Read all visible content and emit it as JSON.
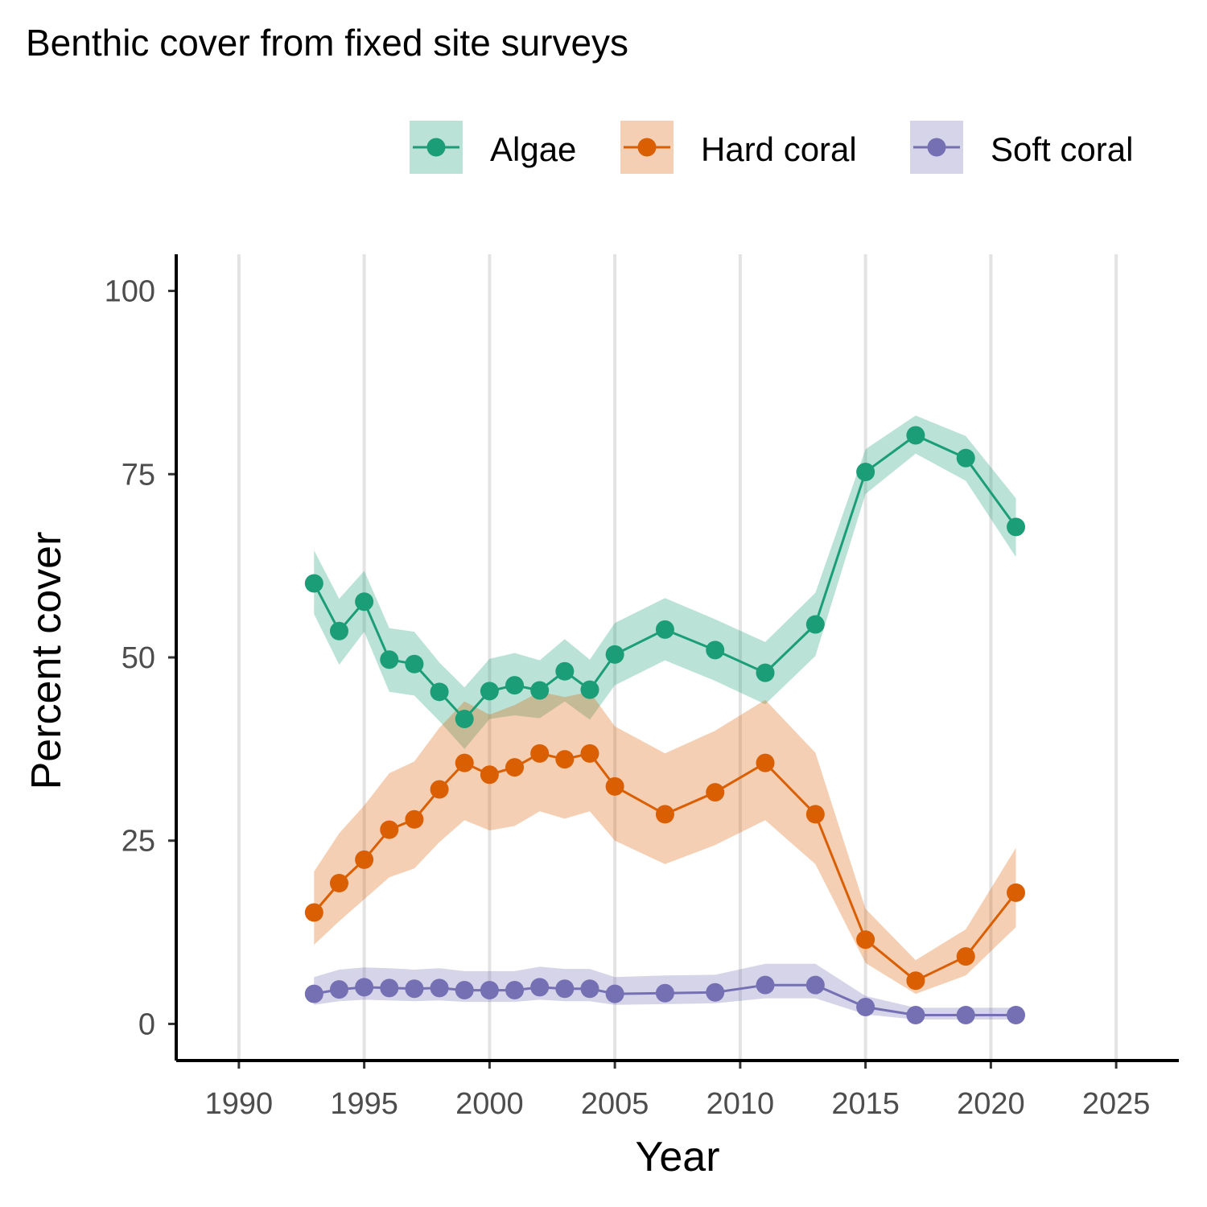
{
  "chart_data": {
    "type": "line",
    "title": "Benthic cover from fixed site surveys",
    "xlabel": "Year",
    "ylabel": "Percent cover",
    "xlim": [
      1987.5,
      2027.5
    ],
    "ylim": [
      -5,
      105
    ],
    "x_ticks": [
      "1990",
      "1995",
      "2000",
      "2005",
      "2010",
      "2015",
      "2020",
      "2025"
    ],
    "y_ticks": [
      "0",
      "25",
      "50",
      "75",
      "100"
    ],
    "grid": "vertical major only",
    "legend_position": "top-right",
    "x": [
      1993,
      1994,
      1995,
      1996,
      1997,
      1998,
      1999,
      2000,
      2001,
      2002,
      2003,
      2004,
      2005,
      2007,
      2009,
      2011,
      2013,
      2015,
      2017,
      2019,
      2021
    ],
    "series": [
      {
        "name": "Algae",
        "color": "#1b9e77",
        "values": [
          60.1,
          53.6,
          57.6,
          49.7,
          49.1,
          45.3,
          41.6,
          45.4,
          46.2,
          45.5,
          48.1,
          45.6,
          50.4,
          53.8,
          51.0,
          47.9,
          54.5,
          75.3,
          80.3,
          77.2,
          67.8
        ],
        "lower": [
          55.9,
          49.0,
          53.5,
          45.3,
          44.8,
          41.3,
          37.5,
          41.6,
          42.1,
          41.7,
          44.0,
          41.5,
          46.2,
          49.6,
          46.8,
          43.6,
          50.2,
          72.3,
          77.8,
          74.1,
          63.7
        ],
        "upper": [
          64.6,
          58.0,
          61.8,
          54.0,
          53.5,
          49.3,
          45.9,
          49.8,
          50.6,
          49.6,
          52.5,
          49.7,
          54.7,
          58.1,
          55.2,
          52.1,
          58.8,
          78.4,
          83.0,
          80.2,
          71.7
        ]
      },
      {
        "name": "Hard coral",
        "color": "#d95f02",
        "values": [
          15.2,
          19.2,
          22.4,
          26.5,
          27.9,
          32.0,
          35.6,
          34.0,
          35.0,
          36.9,
          36.1,
          36.9,
          32.4,
          28.6,
          31.6,
          35.6,
          28.6,
          11.5,
          5.9,
          9.2,
          17.9
        ],
        "lower": [
          10.8,
          14.0,
          17.0,
          20.0,
          21.2,
          24.8,
          27.8,
          26.4,
          27.0,
          29.0,
          28.0,
          29.0,
          25.0,
          21.8,
          24.4,
          27.8,
          21.8,
          8.3,
          4.1,
          6.6,
          13.2
        ],
        "upper": [
          20.8,
          26.0,
          29.8,
          34.2,
          35.8,
          40.4,
          44.0,
          42.2,
          43.5,
          45.3,
          44.6,
          45.3,
          40.6,
          36.9,
          40.0,
          44.2,
          37.0,
          15.7,
          8.7,
          12.9,
          24.0
        ]
      },
      {
        "name": "Soft coral",
        "color": "#7570b3",
        "values": [
          4.1,
          4.7,
          5.0,
          4.9,
          4.8,
          4.9,
          4.6,
          4.6,
          4.6,
          5.0,
          4.8,
          4.8,
          4.1,
          4.2,
          4.3,
          5.3,
          5.3,
          2.3,
          1.2,
          1.2,
          1.2
        ],
        "lower": [
          2.6,
          3.1,
          3.3,
          3.2,
          3.1,
          3.2,
          3.0,
          3.0,
          3.0,
          3.3,
          3.1,
          3.1,
          2.6,
          2.7,
          2.8,
          3.5,
          3.5,
          1.3,
          0.6,
          0.6,
          0.6
        ],
        "upper": [
          6.4,
          7.4,
          7.7,
          7.6,
          7.4,
          7.6,
          7.2,
          7.2,
          7.2,
          7.8,
          7.5,
          7.5,
          6.4,
          6.6,
          6.7,
          8.2,
          8.2,
          3.8,
          2.2,
          2.2,
          2.2
        ]
      }
    ]
  }
}
